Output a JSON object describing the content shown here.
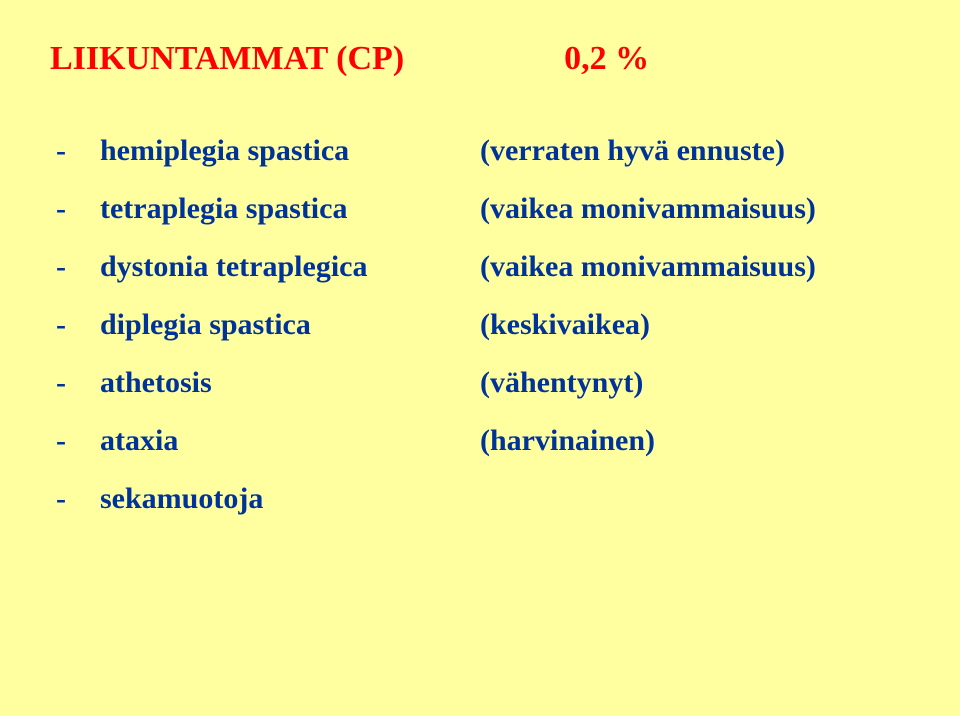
{
  "colors": {
    "background": "#ffffa0",
    "title": "#ff0000",
    "body": "#003399"
  },
  "typography": {
    "font_family": "Comic Sans MS",
    "title_fontsize": 34,
    "body_fontsize": 30,
    "font_weight": "bold"
  },
  "title": {
    "text": "LIIKUNTAMMAT (CP)",
    "value": "0,2 %"
  },
  "items": [
    {
      "label": "hemiplegia spastica",
      "desc": "(verraten hyvä ennuste)"
    },
    {
      "label": "tetraplegia spastica",
      "desc": "(vaikea monivammaisuus)"
    },
    {
      "label": "dystonia tetraplegica",
      "desc": "(vaikea monivammaisuus)"
    },
    {
      "label": "diplegia spastica",
      "desc": "(keskivaikea)"
    },
    {
      "label": "athetosis",
      "desc": "(vähentynyt)"
    },
    {
      "label": "ataxia",
      "desc": "(harvinainen)"
    },
    {
      "label": "sekamuotoja",
      "desc": ""
    }
  ],
  "bullet_dash": "-"
}
